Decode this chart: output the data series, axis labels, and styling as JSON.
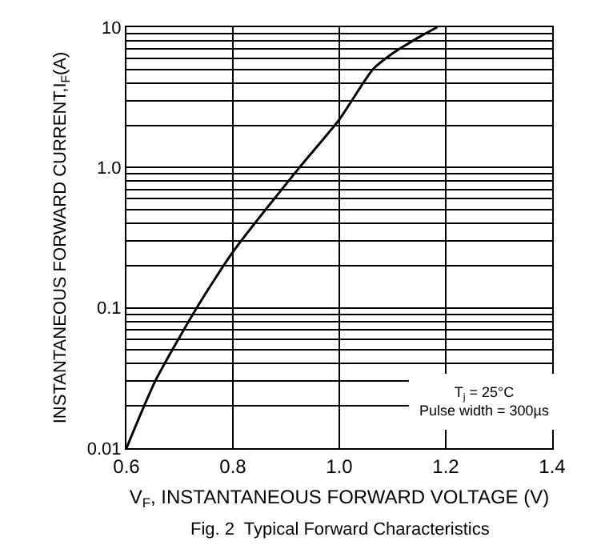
{
  "chart_data": {
    "type": "line",
    "title": "Fig. 2  Typical Forward Characteristics",
    "xlabel": "V$_{F}$, INSTANTANEOUS FORWARD VOLTAGE (V)",
    "ylabel": "INSTANTANEOUS FORWARD CURRENT,I$_{F}$(A)",
    "annotations": [
      "T$_{j}$ = 25°C",
      "Pulse width = 300µs"
    ],
    "x": [
      0.6,
      0.654,
      0.732,
      0.8,
      0.925,
      1.0,
      1.063,
      1.1,
      1.15,
      1.184
    ],
    "series": [
      {
        "color": "#000000",
        "values": [
          0.01,
          0.03,
          0.1,
          0.25,
          1,
          2.2,
          5,
          6.5,
          8.5,
          10
        ]
      }
    ],
    "log": "y",
    "grid": true,
    "marker": "none",
    "line_style": "solid",
    "xlim": [
      0.6,
      1.4
    ],
    "xticks": [
      0.6,
      0.8,
      {
        "value": 1,
        "label": "1.0"
      },
      1.2,
      1.4
    ],
    "ylim": [
      0.01,
      10
    ],
    "yticks": [
      0.01,
      {
        "value": 0.02,
        "label": null
      },
      {
        "value": 0.03,
        "label": null
      },
      {
        "value": 0.04,
        "label": null
      },
      {
        "value": 0.05,
        "label": null
      },
      {
        "value": 0.06,
        "label": null
      },
      {
        "value": 0.07,
        "label": null
      },
      {
        "value": 0.08,
        "label": null
      },
      {
        "value": 0.09,
        "label": null
      },
      0.1,
      {
        "value": 0.2,
        "label": null
      },
      {
        "value": 0.3,
        "label": null
      },
      {
        "value": 0.4,
        "label": null
      },
      {
        "value": 0.5,
        "label": null
      },
      {
        "value": 0.6,
        "label": null
      },
      {
        "value": 0.7,
        "label": null
      },
      {
        "value": 0.8,
        "label": null
      },
      {
        "value": 0.9,
        "label": null
      },
      {
        "value": 1,
        "label": "1.0"
      },
      {
        "value": 2,
        "label": null
      },
      {
        "value": 3,
        "label": null
      },
      {
        "value": 4,
        "label": null
      },
      {
        "value": 5,
        "label": null
      },
      {
        "value": 6,
        "label": null
      },
      {
        "value": 7,
        "label": null
      },
      {
        "value": 8,
        "label": null
      },
      {
        "value": 9,
        "label": null
      },
      10
    ]
  }
}
